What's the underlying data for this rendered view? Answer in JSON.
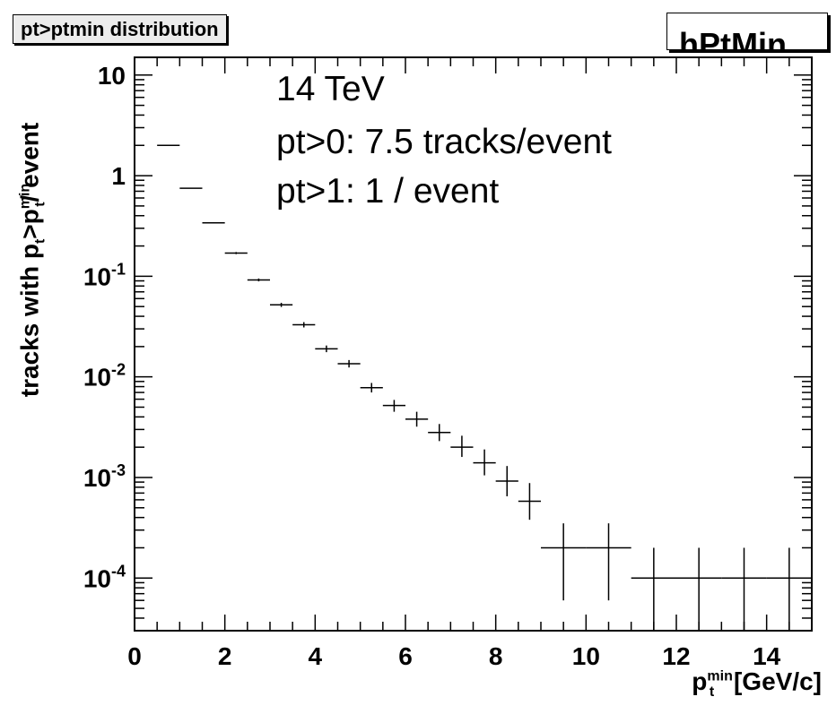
{
  "title_box": "pt>ptmin distribution",
  "stat_box": "hPtMin",
  "y_axis_label": {
    "main": "tracks with p",
    "sub1": "t",
    "mid": ">p",
    "sup2": "min",
    "sub2": "t",
    "tail": "/ event"
  },
  "x_axis_label": {
    "main": "p",
    "sup": "min",
    "sub": "t",
    "unit": " [GeV/c]"
  },
  "annotations": [
    "14 TeV",
    "pt>0: 7.5 tracks/event",
    "pt>1: 1 / event"
  ],
  "chart_data": {
    "type": "scatter",
    "title": "pt>ptmin distribution",
    "xlabel": "p_t^min [GeV/c]",
    "ylabel": "tracks with p_t>p_t^min / event",
    "xlim": [
      0,
      15
    ],
    "ylim": [
      3e-05,
      15
    ],
    "yscale": "log",
    "grid": false,
    "xticks": [
      0,
      2,
      4,
      6,
      8,
      10,
      12,
      14
    ],
    "yticks": [
      {
        "value": 10,
        "label": "10",
        "exp": ""
      },
      {
        "value": 1,
        "label": "1",
        "exp": ""
      },
      {
        "value": 0.1,
        "label": "10",
        "exp": "-1"
      },
      {
        "value": 0.01,
        "label": "10",
        "exp": "-2"
      },
      {
        "value": 0.001,
        "label": "10",
        "exp": "-3"
      },
      {
        "value": 0.0001,
        "label": "10",
        "exp": "-4"
      }
    ],
    "series": [
      {
        "points": [
          {
            "x": 0.75,
            "xerr": 0.25,
            "y": 2.0,
            "ylo": 2.0,
            "yhi": 2.0
          },
          {
            "x": 1.25,
            "xerr": 0.25,
            "y": 0.75,
            "ylo": 0.75,
            "yhi": 0.75
          },
          {
            "x": 1.75,
            "xerr": 0.25,
            "y": 0.34,
            "ylo": 0.335,
            "yhi": 0.345
          },
          {
            "x": 2.25,
            "xerr": 0.25,
            "y": 0.17,
            "ylo": 0.166,
            "yhi": 0.174
          },
          {
            "x": 2.75,
            "xerr": 0.25,
            "y": 0.092,
            "ylo": 0.089,
            "yhi": 0.095
          },
          {
            "x": 3.25,
            "xerr": 0.25,
            "y": 0.052,
            "ylo": 0.0495,
            "yhi": 0.0545
          },
          {
            "x": 3.75,
            "xerr": 0.25,
            "y": 0.033,
            "ylo": 0.031,
            "yhi": 0.035
          },
          {
            "x": 4.25,
            "xerr": 0.25,
            "y": 0.019,
            "ylo": 0.0176,
            "yhi": 0.0205
          },
          {
            "x": 4.75,
            "xerr": 0.25,
            "y": 0.0135,
            "ylo": 0.0124,
            "yhi": 0.0147
          },
          {
            "x": 5.25,
            "xerr": 0.25,
            "y": 0.0078,
            "ylo": 0.007,
            "yhi": 0.0087
          },
          {
            "x": 5.75,
            "xerr": 0.25,
            "y": 0.0052,
            "ylo": 0.0045,
            "yhi": 0.0059
          },
          {
            "x": 6.25,
            "xerr": 0.25,
            "y": 0.0038,
            "ylo": 0.0032,
            "yhi": 0.0045
          },
          {
            "x": 6.75,
            "xerr": 0.25,
            "y": 0.0028,
            "ylo": 0.0023,
            "yhi": 0.0034
          },
          {
            "x": 7.25,
            "xerr": 0.25,
            "y": 0.002,
            "ylo": 0.0016,
            "yhi": 0.0026
          },
          {
            "x": 7.75,
            "xerr": 0.25,
            "y": 0.0014,
            "ylo": 0.00105,
            "yhi": 0.0019
          },
          {
            "x": 8.25,
            "xerr": 0.25,
            "y": 0.00092,
            "ylo": 0.00065,
            "yhi": 0.0013
          },
          {
            "x": 8.75,
            "xerr": 0.25,
            "y": 0.00058,
            "ylo": 0.00038,
            "yhi": 0.00088
          },
          {
            "x": 9.5,
            "xerr": 0.5,
            "y": 0.0002,
            "ylo": 6e-05,
            "yhi": 0.00035
          },
          {
            "x": 10.5,
            "xerr": 0.5,
            "y": 0.0002,
            "ylo": 6e-05,
            "yhi": 0.00035
          },
          {
            "x": 11.5,
            "xerr": 0.5,
            "y": 0.0001,
            "ylo": 3e-05,
            "yhi": 0.0002
          },
          {
            "x": 12.5,
            "xerr": 0.5,
            "y": 0.0001,
            "ylo": 3e-05,
            "yhi": 0.0002
          },
          {
            "x": 13.5,
            "xerr": 0.5,
            "y": 0.0001,
            "ylo": 3e-05,
            "yhi": 0.0002
          },
          {
            "x": 14.5,
            "xerr": 0.5,
            "y": 0.0001,
            "ylo": 3e-05,
            "yhi": 0.0002
          }
        ]
      }
    ],
    "colors": {
      "marker": "#000000",
      "frame": "#000000"
    }
  }
}
